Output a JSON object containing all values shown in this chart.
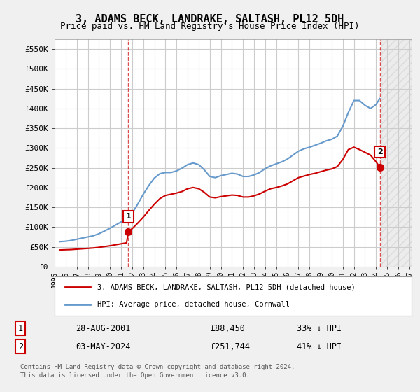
{
  "title": "3, ADAMS BECK, LANDRAKE, SALTASH, PL12 5DH",
  "subtitle": "Price paid vs. HM Land Registry's House Price Index (HPI)",
  "ylabel_ticks": [
    "£0",
    "£50K",
    "£100K",
    "£150K",
    "£200K",
    "£250K",
    "£300K",
    "£350K",
    "£400K",
    "£450K",
    "£500K",
    "£550K"
  ],
  "ytick_values": [
    0,
    50000,
    100000,
    150000,
    200000,
    250000,
    300000,
    350000,
    400000,
    450000,
    500000,
    550000
  ],
  "ylim": [
    0,
    575000
  ],
  "xlim_start": 1995.3,
  "xlim_end": 2027.2,
  "xtick_years": [
    1995,
    1996,
    1997,
    1998,
    1999,
    2000,
    2001,
    2002,
    2003,
    2004,
    2005,
    2006,
    2007,
    2008,
    2009,
    2010,
    2011,
    2012,
    2013,
    2014,
    2015,
    2016,
    2017,
    2018,
    2019,
    2020,
    2021,
    2022,
    2023,
    2024,
    2025,
    2026,
    2027
  ],
  "sale1_x": 2001.65,
  "sale1_y": 88450,
  "sale1_label": "1",
  "sale2_x": 2024.33,
  "sale2_y": 251744,
  "sale2_label": "2",
  "property_color": "#cc0000",
  "hpi_color": "#6699cc",
  "dashed_color": "#cc0000",
  "grid_color": "#cccccc",
  "bg_color": "#f0f0f0",
  "plot_bg_color": "#ffffff",
  "legend_label1": "3, ADAMS BECK, LANDRAKE, SALTASH, PL12 5DH (detached house)",
  "legend_label2": "HPI: Average price, detached house, Cornwall",
  "table_row1": [
    "1",
    "28-AUG-2001",
    "£88,450",
    "33% ↓ HPI"
  ],
  "table_row2": [
    "2",
    "03-MAY-2024",
    "£251,744",
    "41% ↓ HPI"
  ],
  "footer1": "Contains HM Land Registry data © Crown copyright and database right 2024.",
  "footer2": "This data is licensed under the Open Government Licence v3.0.",
  "hpi_data_x": [
    1995.5,
    1996.0,
    1996.5,
    1997.0,
    1997.5,
    1998.0,
    1998.5,
    1999.0,
    1999.5,
    2000.0,
    2000.5,
    2001.0,
    2001.5,
    2002.0,
    2002.5,
    2003.0,
    2003.5,
    2004.0,
    2004.5,
    2005.0,
    2005.5,
    2006.0,
    2006.5,
    2007.0,
    2007.5,
    2008.0,
    2008.5,
    2009.0,
    2009.5,
    2010.0,
    2010.5,
    2011.0,
    2011.5,
    2012.0,
    2012.5,
    2013.0,
    2013.5,
    2014.0,
    2014.5,
    2015.0,
    2015.5,
    2016.0,
    2016.5,
    2017.0,
    2017.5,
    2018.0,
    2018.5,
    2019.0,
    2019.5,
    2020.0,
    2020.5,
    2021.0,
    2021.5,
    2022.0,
    2022.5,
    2023.0,
    2023.5,
    2024.0,
    2024.33
  ],
  "hpi_data_y": [
    63000,
    64000,
    66000,
    69000,
    72000,
    75000,
    78000,
    83000,
    90000,
    97000,
    105000,
    113000,
    122000,
    135000,
    158000,
    183000,
    205000,
    224000,
    235000,
    238000,
    238000,
    242000,
    249000,
    258000,
    262000,
    258000,
    245000,
    228000,
    225000,
    230000,
    233000,
    236000,
    234000,
    228000,
    228000,
    232000,
    238000,
    248000,
    255000,
    260000,
    265000,
    272000,
    282000,
    292000,
    298000,
    302000,
    307000,
    312000,
    318000,
    322000,
    330000,
    355000,
    390000,
    420000,
    420000,
    408000,
    400000,
    410000,
    425000
  ],
  "prop_data_x": [
    1995.5,
    1996.0,
    1996.5,
    1997.0,
    1997.5,
    1998.0,
    1998.5,
    1999.0,
    1999.5,
    2000.0,
    2000.5,
    2001.0,
    2001.5,
    2001.65,
    2002.0,
    2002.5,
    2003.0,
    2003.5,
    2004.0,
    2004.5,
    2005.0,
    2005.5,
    2006.0,
    2006.5,
    2007.0,
    2007.5,
    2008.0,
    2008.5,
    2009.0,
    2009.5,
    2010.0,
    2010.5,
    2011.0,
    2011.5,
    2012.0,
    2012.5,
    2013.0,
    2013.5,
    2014.0,
    2014.5,
    2015.0,
    2015.5,
    2016.0,
    2016.5,
    2017.0,
    2017.5,
    2018.0,
    2018.5,
    2019.0,
    2019.5,
    2020.0,
    2020.5,
    2021.0,
    2021.5,
    2022.0,
    2022.5,
    2023.0,
    2023.5,
    2024.0,
    2024.33
  ],
  "prop_data_y": [
    42000,
    42500,
    43000,
    44000,
    45000,
    46000,
    47000,
    48500,
    50500,
    52500,
    55000,
    57500,
    60000,
    88450,
    96000,
    110000,
    125000,
    142000,
    158000,
    172000,
    180000,
    183000,
    186000,
    190000,
    197000,
    200000,
    197000,
    188000,
    176000,
    174000,
    177000,
    179000,
    181000,
    180000,
    176000,
    176000,
    179000,
    184000,
    191000,
    197000,
    200000,
    204000,
    209000,
    217000,
    225000,
    229000,
    233000,
    236000,
    240000,
    244000,
    247000,
    253000,
    271000,
    296000,
    302000,
    296000,
    289000,
    282000,
    265000,
    251744
  ]
}
